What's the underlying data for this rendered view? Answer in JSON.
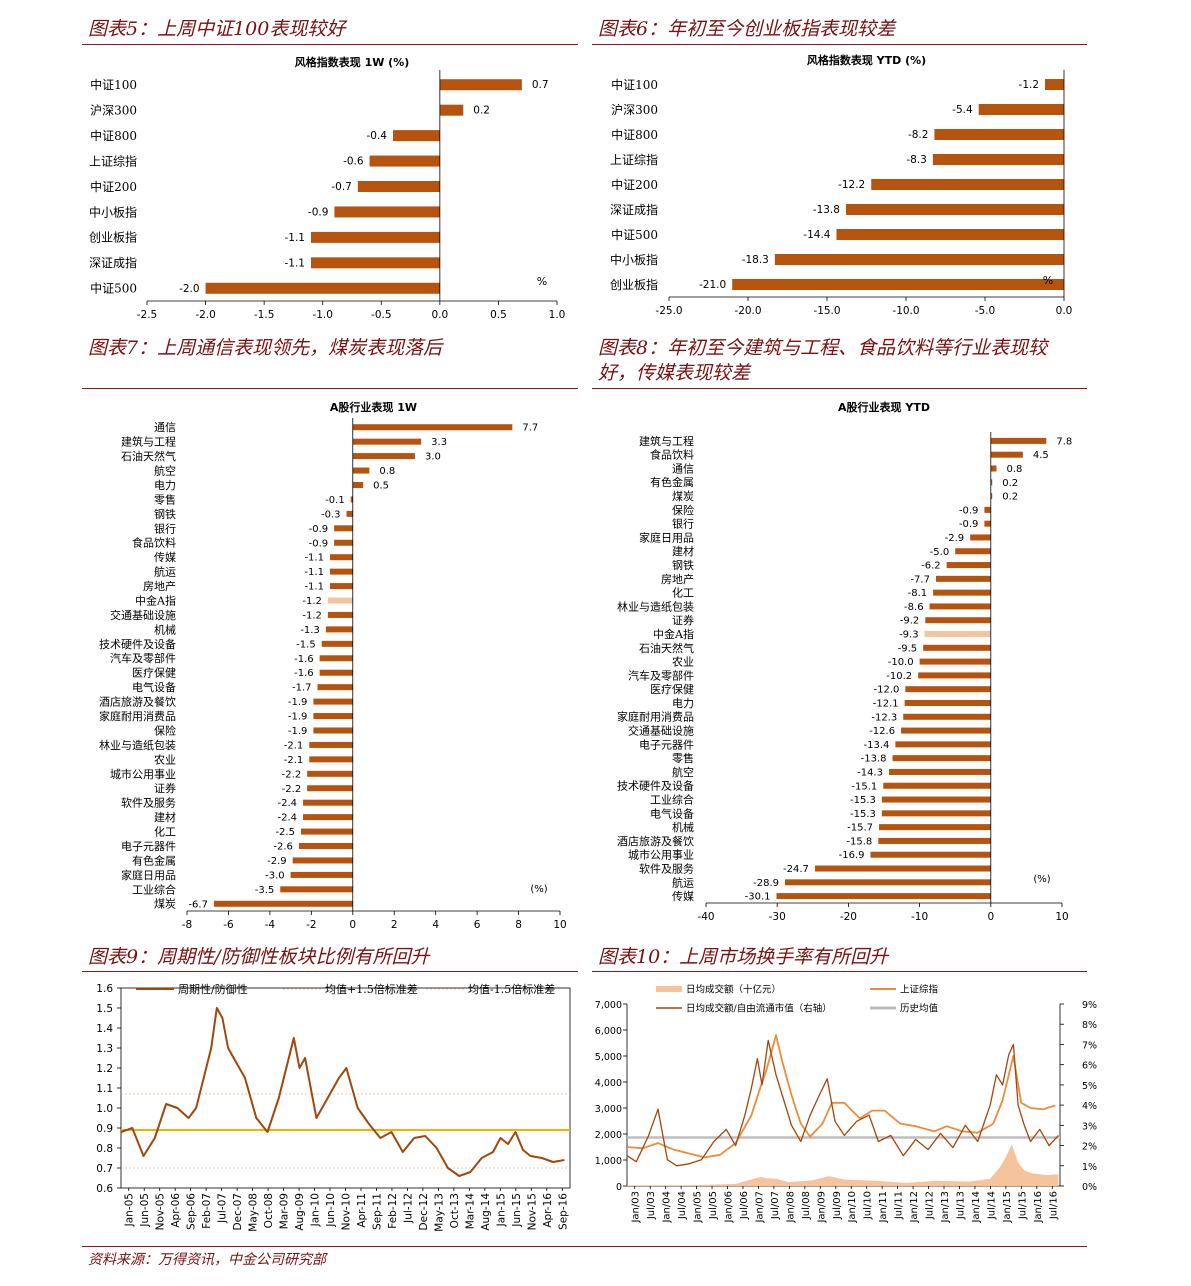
{
  "titles": {
    "c5": "图表5：上周中证100表现较好",
    "c6": "图表6：年初至今创业板指表现较差",
    "c7": "图表7：上周通信表现领先，煤炭表现落后",
    "c8a": "图表8：年初至今建筑与工程、食品饮料等行业表现较",
    "c8b": "好，传媒表现较差",
    "c9": "图表9：周期性/防御性板块比例有所回升",
    "c10": "图表10：上周市场换手率有所回升"
  },
  "source": "资料来源：万得资讯，中金公司研究部",
  "colors": {
    "bar": "#b5530f",
    "highlight": "#f5c49c",
    "line": "#a0470e",
    "mean": "#f5b000",
    "rule": "#8b1a1a",
    "area": "#f5c49c",
    "sh": "#ec8c3a",
    "gray": "#bdbdbd"
  },
  "chart_data": [
    {
      "id": "c5",
      "type": "bar",
      "orientation": "horizontal",
      "title": "风格指数表现 1W (%)",
      "unit_label": "%",
      "categories": [
        "中证100",
        "沪深300",
        "中证800",
        "上证综指",
        "中证200",
        "中小板指",
        "创业板指",
        "深证成指",
        "中证500"
      ],
      "values": [
        0.7,
        0.2,
        -0.4,
        -0.6,
        -0.7,
        -0.9,
        -1.1,
        -1.1,
        -2.0
      ],
      "value_labels": [
        "0.7",
        "0.2",
        "-0.4",
        "-0.6",
        "-0.7",
        "-0.9",
        "-1.1",
        "-1.1",
        "-2.0"
      ],
      "xlim": [
        -2.5,
        1.0
      ],
      "xticks": [
        -2.5,
        -2.0,
        -1.5,
        -1.0,
        -0.5,
        0.0,
        0.5,
        1.0
      ],
      "xtick_labels": [
        "-2.5",
        "-2.0",
        "-1.5",
        "-1.0",
        "-0.5",
        "0.0",
        "0.5",
        "1.0"
      ]
    },
    {
      "id": "c6",
      "type": "bar",
      "orientation": "horizontal",
      "title": "风格指数表现 YTD (%)",
      "unit_label": "%",
      "categories": [
        "中证100",
        "沪深300",
        "中证800",
        "上证综指",
        "中证200",
        "深证成指",
        "中证500",
        "中小板指",
        "创业板指"
      ],
      "values": [
        -1.2,
        -5.4,
        -8.2,
        -8.3,
        -12.2,
        -13.8,
        -14.4,
        -18.3,
        -21.0
      ],
      "value_labels": [
        "-1.2",
        "-5.4",
        "-8.2",
        "-8.3",
        "-12.2",
        "-13.8",
        "-14.4",
        "-18.3",
        "-21.0"
      ],
      "xlim": [
        -25,
        0
      ],
      "xticks": [
        -25,
        -20,
        -15,
        -10,
        -5,
        0
      ],
      "xtick_labels": [
        "-25.0",
        "-20.0",
        "-15.0",
        "-10.0",
        "-5.0",
        "0.0"
      ]
    },
    {
      "id": "c7",
      "type": "bar",
      "orientation": "horizontal",
      "title": "A股行业表现 1W",
      "unit_label": "(%)",
      "categories": [
        "通信",
        "建筑与工程",
        "石油天然气",
        "航空",
        "电力",
        "零售",
        "钢铁",
        "银行",
        "食品饮料",
        "传媒",
        "航运",
        "房地产",
        "中金A指",
        "交通基础设施",
        "机械",
        "技术硬件及设备",
        "汽车及零部件",
        "医疗保健",
        "电气设备",
        "酒店旅游及餐饮",
        "家庭耐用消费品",
        "保险",
        "林业与造纸包装",
        "农业",
        "城市公用事业",
        "证券",
        "软件及服务",
        "建材",
        "化工",
        "电子元器件",
        "有色金属",
        "家庭日用品",
        "工业综合",
        "煤炭"
      ],
      "values": [
        7.7,
        3.3,
        3.0,
        0.8,
        0.5,
        -0.1,
        -0.3,
        -0.9,
        -0.9,
        -1.1,
        -1.1,
        -1.1,
        -1.2,
        -1.2,
        -1.3,
        -1.5,
        -1.6,
        -1.6,
        -1.7,
        -1.9,
        -1.9,
        -1.9,
        -2.1,
        -2.1,
        -2.2,
        -2.2,
        -2.4,
        -2.4,
        -2.5,
        -2.6,
        -2.9,
        -3.0,
        -3.5,
        -6.7
      ],
      "value_labels": [
        "7.7",
        "3.3",
        "3.0",
        "0.8",
        "0.5",
        "-0.1",
        "-0.3",
        "-0.9",
        "-0.9",
        "-1.1",
        "-1.1",
        "-1.1",
        "-1.2",
        "-1.2",
        "-1.3",
        "-1.5",
        "-1.6",
        "-1.6",
        "-1.7",
        "-1.9",
        "-1.9",
        "-1.9",
        "-2.1",
        "-2.1",
        "-2.2",
        "-2.2",
        "-2.4",
        "-2.4",
        "-2.5",
        "-2.6",
        "-2.9",
        "-3.0",
        "-3.5",
        "-6.7"
      ],
      "highlight": "中金A指",
      "xlim": [
        -8,
        10
      ],
      "xticks": [
        -8,
        -6,
        -4,
        -2,
        0,
        2,
        4,
        6,
        8,
        10
      ],
      "xtick_labels": [
        "-8",
        "-6",
        "-4",
        "-2",
        "0",
        "2",
        "4",
        "6",
        "8",
        "10"
      ]
    },
    {
      "id": "c8",
      "type": "bar",
      "orientation": "horizontal",
      "title": "A股行业表现 YTD",
      "unit_label": "(%)",
      "categories": [
        "建筑与工程",
        "食品饮料",
        "通信",
        "有色金属",
        "煤炭",
        "保险",
        "银行",
        "家庭日用品",
        "建材",
        "钢铁",
        "房地产",
        "化工",
        "林业与造纸包装",
        "证券",
        "中金A指",
        "石油天然气",
        "农业",
        "汽车及零部件",
        "医疗保健",
        "电力",
        "家庭耐用消费品",
        "交通基础设施",
        "电子元器件",
        "零售",
        "航空",
        "技术硬件及设备",
        "工业综合",
        "电气设备",
        "机械",
        "酒店旅游及餐饮",
        "城市公用事业",
        "软件及服务",
        "航运",
        "传媒"
      ],
      "values": [
        7.8,
        4.5,
        0.8,
        0.2,
        0.2,
        -0.9,
        -0.9,
        -2.9,
        -5.0,
        -6.2,
        -7.7,
        -8.1,
        -8.6,
        -9.2,
        -9.3,
        -9.5,
        -10.0,
        -10.2,
        -12.0,
        -12.1,
        -12.3,
        -12.6,
        -13.4,
        -13.8,
        -14.3,
        -15.1,
        -15.3,
        -15.3,
        -15.7,
        -15.8,
        -16.9,
        -24.7,
        -28.9,
        -30.1
      ],
      "value_labels": [
        "7.8",
        "4.5",
        "0.8",
        "0.2",
        "0.2",
        "-0.9",
        "-0.9",
        "-2.9",
        "-5.0",
        "-6.2",
        "-7.7",
        "-8.1",
        "-8.6",
        "-9.2",
        "-9.3",
        "-9.5",
        "-10.0",
        "-10.2",
        "-12.0",
        "-12.1",
        "-12.3",
        "-12.6",
        "-13.4",
        "-13.8",
        "-14.3",
        "-15.1",
        "-15.3",
        "-15.3",
        "-15.7",
        "-15.8",
        "-16.9",
        "-24.7",
        "-28.9",
        "-30.1"
      ],
      "highlight": "中金A指",
      "xlim": [
        -40,
        10
      ],
      "xticks": [
        -40,
        -30,
        -20,
        -10,
        0,
        10
      ],
      "xtick_labels": [
        "-40",
        "-30",
        "-20",
        "-10",
        "0",
        "10"
      ]
    },
    {
      "id": "c9",
      "type": "line",
      "legend": [
        "周期性/防御性",
        "均值+1.5倍标准差",
        "均值-1.5倍标准差"
      ],
      "ylim": [
        0.6,
        1.6
      ],
      "yticks": [
        0.6,
        0.7,
        0.8,
        0.9,
        1.0,
        1.1,
        1.2,
        1.3,
        1.4,
        1.5,
        1.6
      ],
      "ytick_labels": [
        "0.6",
        "0.7",
        "0.8",
        "0.9",
        "1.0",
        "1.1",
        "1.2",
        "1.3",
        "1.4",
        "1.5",
        "1.6"
      ],
      "xticks": [
        "Jan-05",
        "Jun-05",
        "Nov-05",
        "Apr-06",
        "Sep-06",
        "Feb-07",
        "Jul-07",
        "Dec-07",
        "May-08",
        "Oct-08",
        "Mar-09",
        "Aug-09",
        "Jan-10",
        "Jun-10",
        "Nov-10",
        "Apr-11",
        "Sep-11",
        "Feb-12",
        "Jul-12",
        "Dec-12",
        "May-13",
        "Oct-13",
        "Mar-14",
        "Aug-14",
        "Jan-15",
        "Jun-15",
        "Nov-15",
        "Apr-16",
        "Sep-16"
      ],
      "mean": 0.89,
      "upper": 1.07,
      "lower": 0.7,
      "series": [
        {
          "name": "周期性/防御性",
          "x": [
            2005.0,
            2005.3,
            2005.6,
            2005.9,
            2006.2,
            2006.5,
            2006.8,
            2007.0,
            2007.2,
            2007.4,
            2007.55,
            2007.7,
            2007.85,
            2008.0,
            2008.3,
            2008.6,
            2008.9,
            2009.2,
            2009.4,
            2009.6,
            2009.75,
            2009.9,
            2010.2,
            2010.5,
            2010.8,
            2011.0,
            2011.3,
            2011.6,
            2011.9,
            2012.2,
            2012.5,
            2012.8,
            2013.1,
            2013.4,
            2013.7,
            2014.0,
            2014.3,
            2014.6,
            2014.9,
            2015.1,
            2015.3,
            2015.5,
            2015.7,
            2015.9,
            2016.2,
            2016.5,
            2016.8
          ],
          "values": [
            0.88,
            0.9,
            0.76,
            0.85,
            1.02,
            1.0,
            0.95,
            1.0,
            1.15,
            1.3,
            1.5,
            1.45,
            1.3,
            1.25,
            1.15,
            0.95,
            0.88,
            1.05,
            1.2,
            1.35,
            1.2,
            1.25,
            0.95,
            1.05,
            1.15,
            1.2,
            1.0,
            0.92,
            0.85,
            0.88,
            0.78,
            0.85,
            0.86,
            0.8,
            0.7,
            0.66,
            0.68,
            0.75,
            0.78,
            0.85,
            0.82,
            0.88,
            0.79,
            0.76,
            0.75,
            0.73,
            0.74
          ]
        }
      ]
    },
    {
      "id": "c10",
      "type": "area",
      "legend": [
        "日均成交额（十亿元）",
        "上证综指",
        "日均成交额/自由流通市值（右轴）",
        "历史均值"
      ],
      "ylim": [
        0,
        7000
      ],
      "yticks": [
        0,
        1000,
        2000,
        3000,
        4000,
        5000,
        6000,
        7000
      ],
      "ytick_labels": [
        "0",
        "1,000",
        "2,000",
        "3,000",
        "4,000",
        "5,000",
        "6,000",
        "7,000"
      ],
      "y2lim": [
        0,
        9
      ],
      "y2ticks": [
        0,
        1,
        2,
        3,
        4,
        5,
        6,
        7,
        8,
        9
      ],
      "y2tick_labels": [
        "0%",
        "1%",
        "2%",
        "3%",
        "4%",
        "5%",
        "6%",
        "7%",
        "8%",
        "9%"
      ],
      "xticks": [
        "Jan/03",
        "Jul/03",
        "Jan/04",
        "Jul/04",
        "Jan/05",
        "Jul/05",
        "Jan/06",
        "Jul/06",
        "Jan/07",
        "Jul/07",
        "Jan/08",
        "Jul/08",
        "Jan/09",
        "Jul/09",
        "Jan/10",
        "Jul/10",
        "Jan/11",
        "Jul/11",
        "Jan/12",
        "Jul/12",
        "Jan/13",
        "Jul/13",
        "Jan/14",
        "Jul/14",
        "Jan/15",
        "Jul/15",
        "Jan/16",
        "Jul/16"
      ],
      "historical_mean": 2.4,
      "series": [
        {
          "name": "上证综指",
          "x": [
            2003.0,
            2003.5,
            2004.0,
            2004.5,
            2005.0,
            2005.5,
            2006.0,
            2006.5,
            2007.0,
            2007.3,
            2007.5,
            2007.8,
            2008.0,
            2008.3,
            2008.6,
            2008.9,
            2009.3,
            2009.6,
            2010.0,
            2010.5,
            2010.9,
            2011.3,
            2011.8,
            2012.3,
            2012.9,
            2013.3,
            2013.8,
            2014.3,
            2014.8,
            2015.1,
            2015.45,
            2015.7,
            2016.0,
            2016.4,
            2016.8
          ],
          "values": [
            1500,
            1450,
            1650,
            1400,
            1250,
            1100,
            1200,
            1650,
            2700,
            3800,
            4500,
            5800,
            4800,
            3500,
            2400,
            1900,
            2400,
            3200,
            3200,
            2600,
            2900,
            2900,
            2400,
            2300,
            2100,
            2300,
            2100,
            2050,
            2400,
            3300,
            5000,
            3200,
            3000,
            2950,
            3100
          ]
        },
        {
          "name": "日均成交额（十亿元）",
          "x": [
            2003.0,
            2005.0,
            2006.5,
            2007.0,
            2007.3,
            2007.5,
            2007.8,
            2008.2,
            2009.0,
            2009.5,
            2010.0,
            2011.0,
            2012.0,
            2013.0,
            2014.0,
            2014.7,
            2015.0,
            2015.2,
            2015.4,
            2015.6,
            2015.8,
            2016.0,
            2016.5,
            2016.9
          ],
          "values": [
            30,
            25,
            80,
            250,
            350,
            300,
            280,
            150,
            220,
            380,
            250,
            200,
            120,
            200,
            170,
            280,
            700,
            1100,
            1600,
            900,
            600,
            500,
            420,
            450
          ]
        },
        {
          "name": "日均成交额/自由流通市值（右轴）",
          "x": [
            2003.0,
            2003.3,
            2003.7,
            2004.0,
            2004.3,
            2004.6,
            2005.0,
            2005.4,
            2005.8,
            2006.2,
            2006.5,
            2006.8,
            2007.0,
            2007.2,
            2007.35,
            2007.55,
            2007.8,
            2008.0,
            2008.3,
            2008.6,
            2008.9,
            2009.2,
            2009.45,
            2009.7,
            2010.0,
            2010.4,
            2010.8,
            2011.1,
            2011.5,
            2011.9,
            2012.3,
            2012.7,
            2013.1,
            2013.5,
            2013.9,
            2014.3,
            2014.7,
            2014.9,
            2015.1,
            2015.3,
            2015.45,
            2015.6,
            2015.8,
            2016.0,
            2016.3,
            2016.6,
            2016.9
          ],
          "values": [
            1.5,
            1.2,
            2.5,
            3.8,
            1.3,
            1.0,
            1.1,
            1.3,
            2.2,
            2.8,
            2.0,
            3.5,
            4.8,
            6.3,
            5.0,
            7.2,
            5.5,
            4.5,
            3.0,
            2.2,
            3.5,
            4.5,
            5.3,
            3.2,
            2.5,
            3.2,
            3.5,
            2.2,
            2.5,
            1.5,
            2.3,
            1.8,
            2.6,
            1.9,
            3.0,
            2.2,
            4.0,
            5.5,
            5.0,
            6.5,
            7.0,
            4.0,
            3.0,
            2.2,
            2.8,
            2.0,
            2.5
          ]
        }
      ]
    }
  ]
}
